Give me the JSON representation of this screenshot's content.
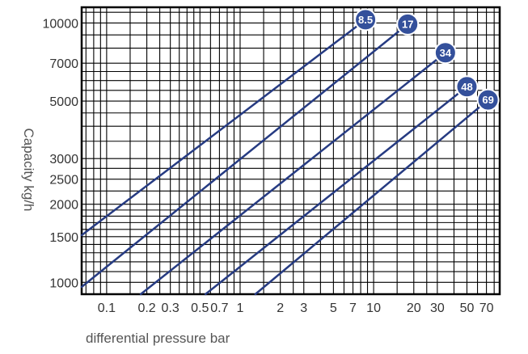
{
  "chart_data": {
    "type": "line",
    "title": "",
    "xlabel": "differential pressure bar",
    "ylabel": "Capacity kg/h",
    "x_scale": "log",
    "y_scale": "log",
    "xlim": [
      0.065,
      88
    ],
    "ylim": [
      900,
      11500
    ],
    "grid": true,
    "legend": "none",
    "line_color": "#263b82",
    "badge_color": "#34509b",
    "x_tick_labels": [
      {
        "value": 0.1,
        "label": "0.1"
      },
      {
        "value": 0.2,
        "label": "0.2"
      },
      {
        "value": 0.3,
        "label": "0.3"
      },
      {
        "value": 0.5,
        "label": "0.5"
      },
      {
        "value": 0.7,
        "label": "0.7"
      },
      {
        "value": 1,
        "label": "1"
      },
      {
        "value": 2,
        "label": "2"
      },
      {
        "value": 3,
        "label": "3"
      },
      {
        "value": 5,
        "label": "5"
      },
      {
        "value": 7,
        "label": "7"
      },
      {
        "value": 10,
        "label": "10"
      },
      {
        "value": 20,
        "label": "20"
      },
      {
        "value": 30,
        "label": "30"
      },
      {
        "value": 50,
        "label": "50"
      },
      {
        "value": 70,
        "label": "70"
      }
    ],
    "y_tick_labels": [
      {
        "value": 1000,
        "label": "1000"
      },
      {
        "value": 1500,
        "label": "1500"
      },
      {
        "value": 2000,
        "label": "2000"
      },
      {
        "value": 2500,
        "label": "2500"
      },
      {
        "value": 3000,
        "label": "3000"
      },
      {
        "value": 5000,
        "label": "5000"
      },
      {
        "value": 7000,
        "label": "7000"
      },
      {
        "value": 10000,
        "label": "10000"
      }
    ],
    "x_grid": [
      0.07,
      0.08,
      0.09,
      0.1,
      0.15,
      0.2,
      0.25,
      0.3,
      0.35,
      0.4,
      0.45,
      0.5,
      0.6,
      0.7,
      0.8,
      0.9,
      1,
      1.5,
      2,
      2.5,
      3,
      4,
      5,
      6,
      7,
      8,
      9,
      10,
      15,
      20,
      25,
      30,
      40,
      50,
      60,
      70,
      80
    ],
    "y_grid": [
      900,
      1000,
      1100,
      1200,
      1300,
      1400,
      1500,
      1600,
      1700,
      1800,
      1900,
      2000,
      2250,
      2500,
      2750,
      3000,
      3500,
      4000,
      4500,
      5000,
      5500,
      6000,
      6500,
      7000,
      8000,
      9000,
      10000,
      11000
    ],
    "series": [
      {
        "name": "8.5",
        "points": [
          [
            0.065,
            1520
          ],
          [
            8.7,
            10300
          ]
        ]
      },
      {
        "name": "17",
        "points": [
          [
            0.065,
            960
          ],
          [
            18,
            9900
          ]
        ]
      },
      {
        "name": "34",
        "points": [
          [
            0.18,
            900
          ],
          [
            34.5,
            7680
          ]
        ]
      },
      {
        "name": "48",
        "points": [
          [
            0.55,
            900
          ],
          [
            50,
            5680
          ]
        ]
      },
      {
        "name": "69",
        "points": [
          [
            1.3,
            900
          ],
          [
            72,
            5050
          ]
        ]
      }
    ]
  }
}
